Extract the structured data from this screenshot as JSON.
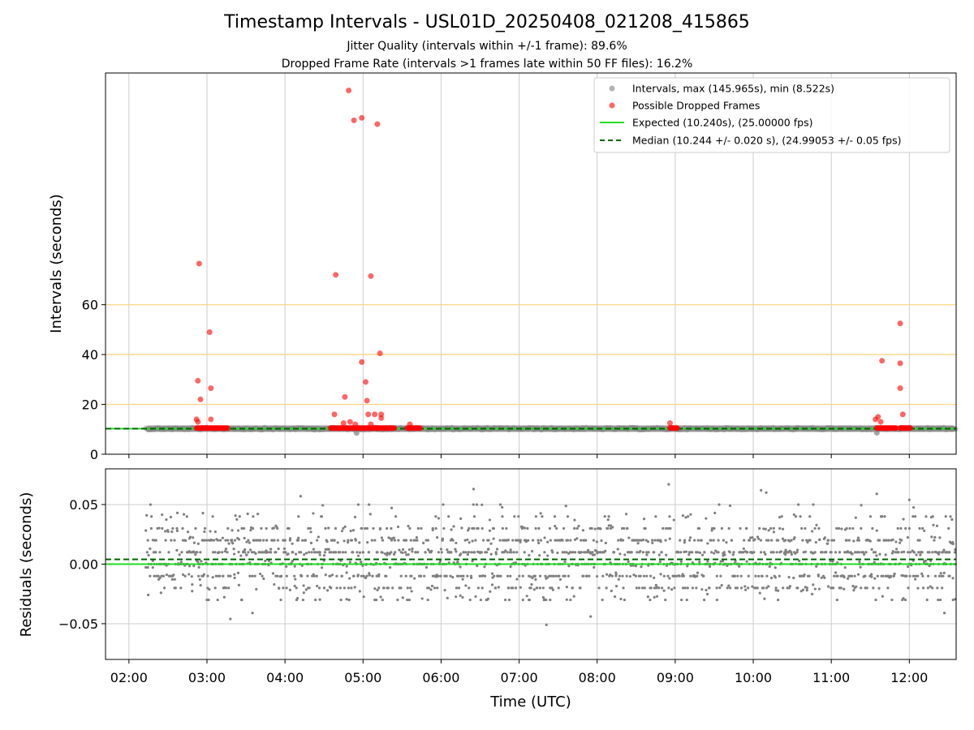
{
  "title": "Timestamp Intervals - USL01D_20250408_021208_415865",
  "subtitle_lines": [
    "Jitter Quality (intervals within +/-1 frame): 89.6%",
    "Dropped Frame Rate (intervals >1 frames late within 50 FF files): 16.2%"
  ],
  "colors": {
    "intervals": "#808080",
    "dropped": "#ff0000",
    "expected": "#22dd22",
    "median": "#006400",
    "threshold_lines": "#ffd27a",
    "grid": "#cccccc"
  },
  "chart_data": [
    {
      "type": "scatter",
      "panel": "intervals",
      "xlabel": "",
      "ylabel": "Intervals (seconds)",
      "xlim": [
        "01:42",
        "12:36"
      ],
      "ylim": [
        0,
        153
      ],
      "yticks": [
        0,
        20,
        40,
        60
      ],
      "ytick_labels": [
        "0",
        "20",
        "40",
        "60"
      ],
      "grid": "vertical",
      "legend_position": "top-right",
      "horizontal_lines": [
        20,
        40,
        60
      ],
      "legend": [
        "Intervals, max (145.965s), min (8.522s)",
        "Possible Dropped Frames",
        "Expected (10.240s), (25.00000 fps)",
        "Median (10.244 +/- 0.020 s), (24.99053 +/- 0.05 fps)"
      ],
      "series": [
        {
          "name": "Intervals, max (145.965s), min (8.522s)",
          "style": "dense points",
          "x_range": [
            "02:13",
            "12:36"
          ],
          "y_typical": 10.24,
          "y_outliers": [
            {
              "x": "04:55",
              "y": 8.52
            },
            {
              "x": "11:35",
              "y": 8.6
            }
          ]
        },
        {
          "name": "Possible Dropped Frames",
          "style": "points",
          "clusters": [
            {
              "x_start": "02:52",
              "x_end": "03:16",
              "y": 10.5
            },
            {
              "x_start": "04:35",
              "x_end": "05:12",
              "y": 10.5
            },
            {
              "x_start": "05:10",
              "x_end": "05:24",
              "y": 10.5
            },
            {
              "x_start": "05:34",
              "x_end": "05:44",
              "y": 10.5
            },
            {
              "x_start": "08:56",
              "x_end": "09:02",
              "y": 10.5
            },
            {
              "x_start": "11:35",
              "x_end": "11:50",
              "y": 10.5
            },
            {
              "x_start": "11:53",
              "x_end": "12:01",
              "y": 10.5
            }
          ],
          "points": [
            {
              "x": "02:54",
              "y": 76.5
            },
            {
              "x": "02:53",
              "y": 29.5
            },
            {
              "x": "02:55",
              "y": 22.0
            },
            {
              "x": "02:52",
              "y": 14.0
            },
            {
              "x": "02:53",
              "y": 13.0
            },
            {
              "x": "03:02",
              "y": 49.0
            },
            {
              "x": "03:03",
              "y": 26.5
            },
            {
              "x": "03:03",
              "y": 14.0
            },
            {
              "x": "04:39",
              "y": 72.0
            },
            {
              "x": "04:38",
              "y": 16.0
            },
            {
              "x": "04:46",
              "y": 23.0
            },
            {
              "x": "04:50",
              "y": 13.0
            },
            {
              "x": "04:54",
              "y": 12.0
            },
            {
              "x": "04:45",
              "y": 12.5
            },
            {
              "x": "04:49",
              "y": 146.0
            },
            {
              "x": "04:53",
              "y": 134.0
            },
            {
              "x": "04:59",
              "y": 135.0
            },
            {
              "x": "05:11",
              "y": 132.5
            },
            {
              "x": "04:59",
              "y": 37.0
            },
            {
              "x": "05:02",
              "y": 29.0
            },
            {
              "x": "05:03",
              "y": 21.5
            },
            {
              "x": "05:06",
              "y": 71.5
            },
            {
              "x": "05:04",
              "y": 16.0
            },
            {
              "x": "05:06",
              "y": 12.0
            },
            {
              "x": "05:09",
              "y": 16.0
            },
            {
              "x": "05:13",
              "y": 40.5
            },
            {
              "x": "05:14",
              "y": 16.0
            },
            {
              "x": "05:14",
              "y": 14.5
            },
            {
              "x": "05:36",
              "y": 12.0
            },
            {
              "x": "08:56",
              "y": 12.5
            },
            {
              "x": "11:34",
              "y": 14.0
            },
            {
              "x": "11:36",
              "y": 15.0
            },
            {
              "x": "11:38",
              "y": 13.0
            },
            {
              "x": "11:39",
              "y": 37.5
            },
            {
              "x": "11:53",
              "y": 52.5
            },
            {
              "x": "11:53",
              "y": 36.5
            },
            {
              "x": "11:53",
              "y": 26.5
            },
            {
              "x": "11:55",
              "y": 16.0
            }
          ]
        },
        {
          "name": "Expected (10.240s), (25.00000 fps)",
          "style": "solid line",
          "y": 10.24
        },
        {
          "name": "Median (10.244 +/- 0.020 s), (24.99053 +/- 0.05 fps)",
          "style": "dashed line",
          "y": 10.244
        }
      ]
    },
    {
      "type": "scatter",
      "panel": "residuals",
      "xlabel": "Time (UTC)",
      "ylabel": "Residuals (seconds)",
      "xlim": [
        "01:42",
        "12:36"
      ],
      "ylim": [
        -0.08,
        0.08
      ],
      "yticks": [
        -0.05,
        0.0,
        0.05
      ],
      "ytick_labels": [
        "−0.05",
        "0.00",
        "0.05"
      ],
      "xticks": [
        "02:00",
        "03:00",
        "04:00",
        "05:00",
        "06:00",
        "07:00",
        "08:00",
        "09:00",
        "10:00",
        "11:00",
        "12:00"
      ],
      "grid": "both",
      "x_range": [
        "02:13",
        "12:36"
      ],
      "typical_range": [
        -0.03,
        0.05
      ],
      "outliers": [
        {
          "x": "03:18",
          "y": -0.046
        },
        {
          "x": "03:35",
          "y": -0.041
        },
        {
          "x": "04:12",
          "y": 0.057
        },
        {
          "x": "06:25",
          "y": 0.063
        },
        {
          "x": "07:21",
          "y": -0.051
        },
        {
          "x": "07:55",
          "y": -0.044
        },
        {
          "x": "08:55",
          "y": 0.067
        },
        {
          "x": "10:06",
          "y": 0.062
        },
        {
          "x": "10:10",
          "y": 0.06
        },
        {
          "x": "11:35",
          "y": 0.059
        },
        {
          "x": "12:00",
          "y": 0.054
        },
        {
          "x": "12:27",
          "y": -0.041
        }
      ],
      "horizontal_lines": [
        {
          "name": "Expected",
          "y": 0.0,
          "style": "solid"
        },
        {
          "name": "Median",
          "y": 0.004,
          "style": "dashed"
        }
      ]
    }
  ]
}
